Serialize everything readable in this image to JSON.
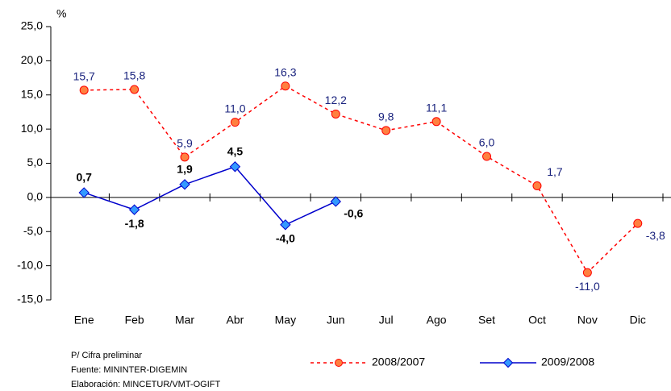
{
  "chart_data": {
    "type": "line",
    "y_unit": "%",
    "categories": [
      "Ene",
      "Feb",
      "Mar",
      "Abr",
      "May",
      "Jun",
      "Jul",
      "Ago",
      "Set",
      "Oct",
      "Nov",
      "Dic"
    ],
    "series": [
      {
        "name": "2008/2007",
        "color": "#ff0000",
        "marker_fill": "#ff8040",
        "label_color": "#1a237e",
        "line_style": "dashed",
        "marker": "circle",
        "values": [
          15.7,
          15.8,
          5.9,
          11.0,
          16.3,
          12.2,
          9.8,
          11.1,
          6.0,
          1.7,
          -11.0,
          -3.8
        ],
        "value_labels": [
          "15,7",
          "15,8",
          "5,9",
          "11,0",
          "16,3",
          "12,2",
          "9,8",
          "11,1",
          "6,0",
          "1,7",
          "-11,0",
          "-3,8"
        ]
      },
      {
        "name": "2009/2008",
        "color": "#0000cc",
        "marker_fill": "#3399ff",
        "label_color": "#000000",
        "line_style": "solid",
        "marker": "diamond",
        "values": [
          0.7,
          -1.8,
          1.9,
          4.5,
          -4.0,
          -0.6,
          null,
          null,
          null,
          null,
          null,
          null
        ],
        "value_labels": [
          "0,7",
          "-1,8",
          "1,9",
          "4,5",
          "-4,0",
          "-0,6",
          null,
          null,
          null,
          null,
          null,
          null
        ]
      }
    ],
    "ylim": [
      -15,
      25
    ],
    "yticks": [
      {
        "value": -15,
        "label": "-15,0"
      },
      {
        "value": -10,
        "label": "-10,0"
      },
      {
        "value": -5,
        "label": "-5,0"
      },
      {
        "value": 0,
        "label": "0,0"
      },
      {
        "value": 5,
        "label": "5,0"
      },
      {
        "value": 10,
        "label": "10,0"
      },
      {
        "value": 15,
        "label": "15,0"
      },
      {
        "value": 20,
        "label": "20,0"
      },
      {
        "value": 25,
        "label": "25,0"
      }
    ],
    "notes": [
      "P/ Cifra preliminar",
      "Fuente: MININTER-DIGEMIN",
      "Elaboración: MINCETUR/VMT-OGIFT"
    ]
  }
}
